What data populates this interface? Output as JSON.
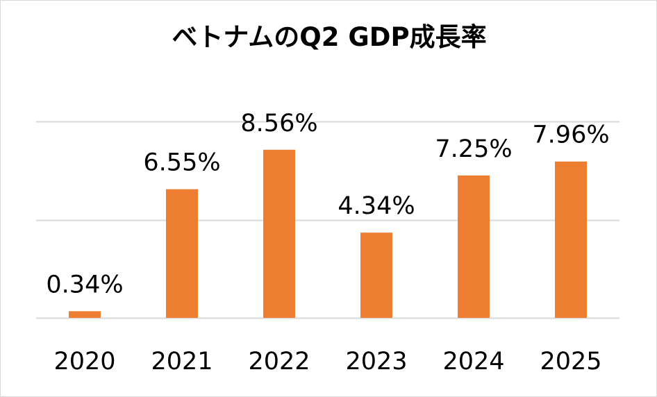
{
  "chart_data": {
    "type": "bar",
    "title": "ベトナムのQ2 GDP成長率",
    "categories": [
      "2020",
      "2021",
      "2022",
      "2023",
      "2024",
      "2025"
    ],
    "values": [
      0.34,
      6.55,
      8.56,
      4.34,
      7.25,
      7.96
    ],
    "data_labels": [
      "0.34%",
      "6.55%",
      "8.56%",
      "4.34%",
      "7.25%",
      "7.96%"
    ],
    "xlabel": "",
    "ylabel": "",
    "ylim": [
      0,
      10
    ],
    "grid": true,
    "legend": "none",
    "bar_color": "#ed7d31",
    "grid_color": "#d9d9d9"
  }
}
